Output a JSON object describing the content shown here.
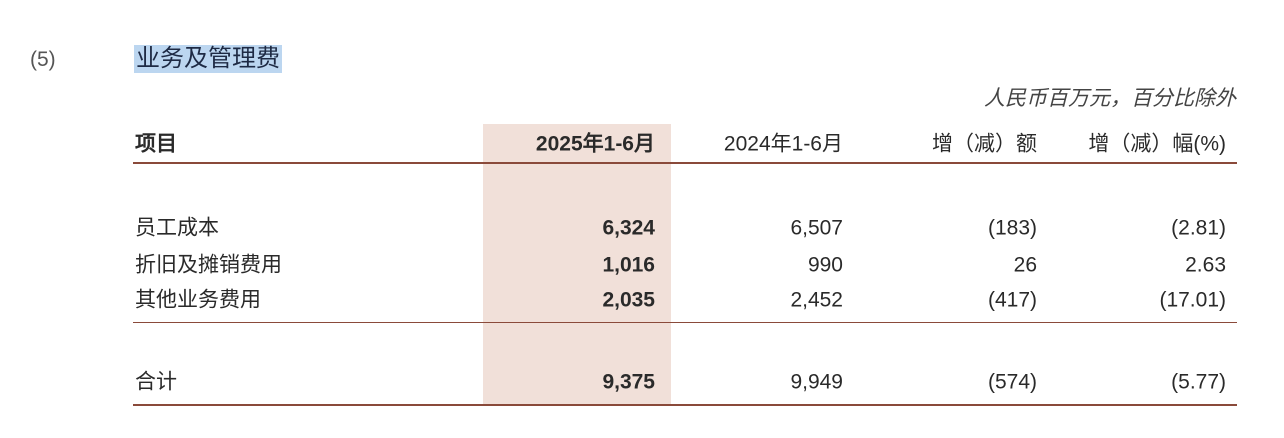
{
  "section": {
    "number": "(5)",
    "title": "业务及管理费",
    "unit_note": "人民币百万元，百分比除外"
  },
  "table": {
    "headers": [
      "项目",
      "2025年1-6月",
      "2024年1-6月",
      "增（减）额",
      "增（减）幅(%)"
    ],
    "rows": [
      [
        "员工成本",
        "6,324",
        "6,507",
        "(183)",
        "(2.81)"
      ],
      [
        "折旧及摊销费用",
        "1,016",
        "990",
        "26",
        "2.63"
      ],
      [
        "其他业务费用",
        "2,035",
        "2,452",
        "(417)",
        "(17.01)"
      ]
    ],
    "total": [
      "合计",
      "9,375",
      "9,949",
      "(574)",
      "(5.77)"
    ]
  }
}
